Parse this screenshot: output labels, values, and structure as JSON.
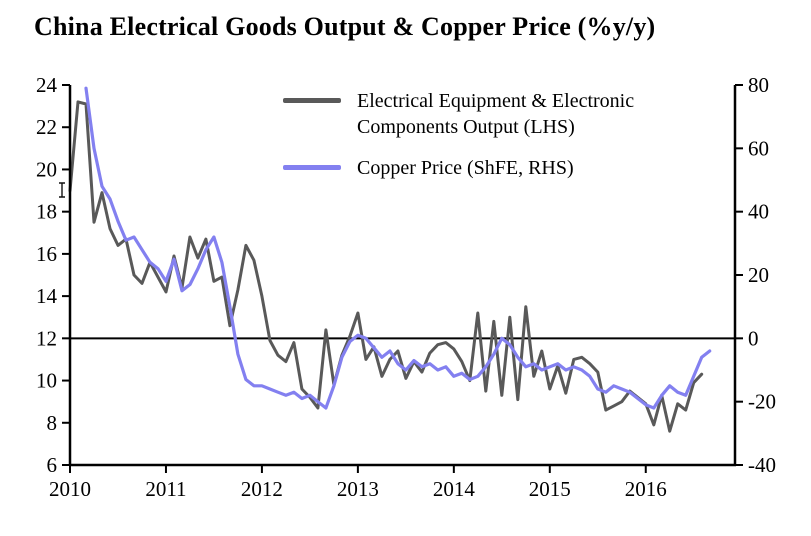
{
  "chart_data": {
    "type": "line",
    "title": "China Electrical Goods Output & Copper Price (%y/y)",
    "grid": false,
    "legend_position": "top-center-inside",
    "x_axis": {
      "min": 2010,
      "max": 2016.93,
      "ticks": [
        2010,
        2011,
        2012,
        2013,
        2014,
        2015,
        2016
      ]
    },
    "left_axis": {
      "min": 6,
      "max": 24,
      "ticks": [
        24,
        22,
        20,
        18,
        16,
        14,
        12,
        10,
        8,
        6
      ]
    },
    "right_axis": {
      "min": -40,
      "max": 80,
      "ticks": [
        80,
        60,
        40,
        20,
        0,
        -20,
        -40
      ]
    },
    "zero_line_lhs": 12,
    "series": [
      {
        "id": "output",
        "name": "Electrical Equipment & Electronic Components Output (LHS)",
        "axis": "left",
        "color": "#595959",
        "stroke_width": 3,
        "x_start": 2010.0,
        "x_step": 0.083333,
        "values": [
          19.0,
          23.2,
          23.1,
          17.5,
          18.9,
          17.2,
          16.4,
          16.7,
          15.0,
          14.6,
          15.6,
          14.9,
          14.2,
          15.9,
          14.4,
          16.8,
          15.8,
          16.7,
          14.7,
          14.9,
          12.6,
          14.3,
          16.4,
          15.7,
          14.0,
          11.9,
          11.2,
          10.9,
          11.8,
          9.6,
          9.2,
          8.7,
          12.4,
          9.8,
          11.2,
          12.1,
          13.2,
          11.0,
          11.6,
          10.2,
          11.0,
          11.4,
          10.1,
          10.9,
          10.4,
          11.3,
          11.7,
          11.8,
          11.5,
          10.9,
          10.0,
          13.2,
          9.5,
          12.8,
          9.3,
          13.0,
          9.1,
          13.5,
          10.2,
          11.4,
          9.6,
          10.7,
          9.4,
          11.0,
          11.1,
          10.8,
          10.4,
          8.6,
          8.8,
          9.0,
          9.5,
          9.2,
          8.9,
          7.9,
          9.3,
          7.6,
          8.9,
          8.6,
          9.9,
          10.3
        ]
      },
      {
        "id": "copper",
        "name": "Copper Price (ShFE, RHS)",
        "axis": "right",
        "color": "#8380F0",
        "stroke_width": 3.2,
        "x_start": 2010.1667,
        "x_step": 0.083333,
        "values": [
          79,
          60,
          48,
          44,
          37,
          31,
          32,
          28,
          24,
          22,
          18,
          25,
          15,
          17,
          22,
          28,
          32,
          24,
          10,
          -5,
          -13,
          -15,
          -15,
          -16,
          -17,
          -18,
          -17,
          -19,
          -18,
          -20,
          -22,
          -15,
          -6,
          -1,
          1,
          0,
          -3,
          -6,
          -4,
          -8,
          -10,
          -7,
          -9,
          -8,
          -10,
          -9,
          -12,
          -11,
          -13,
          -12,
          -9,
          -5,
          0,
          -2,
          -6,
          -9,
          -8,
          -10,
          -9,
          -8,
          -10,
          -9,
          -10,
          -12,
          -16,
          -17,
          -15,
          -16,
          -17,
          -19,
          -21,
          -22,
          -18,
          -15,
          -17,
          -18,
          -12,
          -6,
          -4
        ]
      }
    ]
  }
}
